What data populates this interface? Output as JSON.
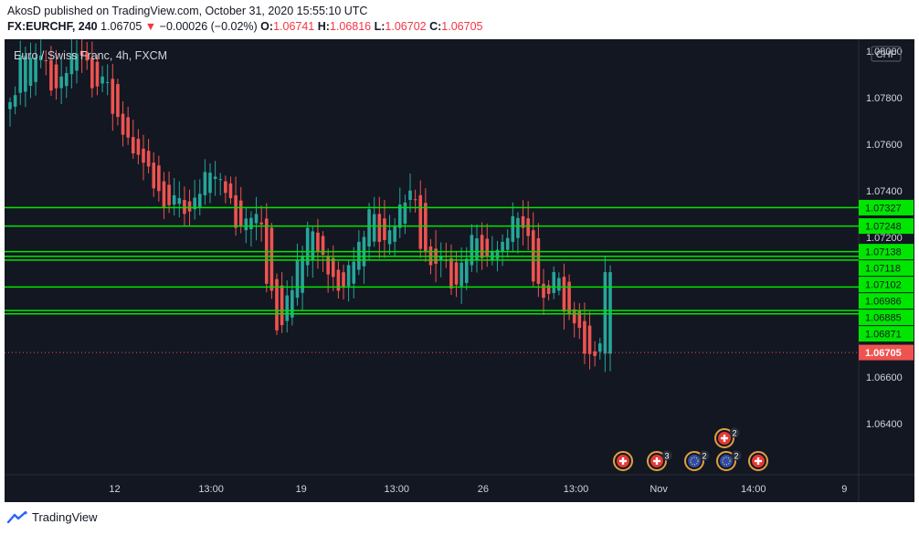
{
  "header": {
    "line1": "AkosD published on TradingView.com, October 31, 2020 15:55:10 UTC",
    "symbol": "FX:EURCHF, 240",
    "last": "1.06705",
    "arrow": "▼",
    "change": "−0.00026 (−0.02%)",
    "o_label": "O:",
    "o": "1.06741",
    "h_label": "H:",
    "h": "1.06816",
    "l_label": "L:",
    "l": "1.06702",
    "c_label": "C:",
    "c": "1.06705"
  },
  "legend": "Euro / Swiss Franc, 4h, FXCM",
  "currency_badge": "CHF",
  "footer": {
    "brand": "TradingView"
  },
  "colors": {
    "bg": "#131722",
    "up": "#26a69a",
    "down": "#ef5350",
    "level": "#00e600",
    "price_tag": "#ef5350",
    "axis_text": "#d1d4dc"
  },
  "chart_data": {
    "type": "candlestick",
    "y_axis": {
      "ylim": [
        1.0618,
        1.0805
      ],
      "ticks": [
        "1.08000",
        "1.07800",
        "1.07600",
        "1.07400",
        "1.07200",
        "1.06600",
        "1.06400"
      ]
    },
    "x_axis": {
      "ticks": [
        {
          "label": "12",
          "t": 0.121
        },
        {
          "label": "13:00",
          "t": 0.227
        },
        {
          "label": "19",
          "t": 0.326
        },
        {
          "label": "13:00",
          "t": 0.431
        },
        {
          "label": "26",
          "t": 0.526
        },
        {
          "label": "13:00",
          "t": 0.628
        },
        {
          "label": "Nov",
          "t": 0.719
        },
        {
          "label": "14:00",
          "t": 0.823
        },
        {
          "label": "9",
          "t": 0.923
        }
      ]
    },
    "levels": [
      {
        "value": 1.07327,
        "label": "1.07327",
        "tag": true
      },
      {
        "value": 1.07248,
        "label": "1.07248",
        "tag": true
      },
      {
        "value": 1.07138,
        "label": "1.07138",
        "tag": true
      },
      {
        "value": 1.07118,
        "label": "1.07118",
        "tag": true
      },
      {
        "value": 1.07102,
        "label": "1.07102",
        "tag": true
      },
      {
        "value": 1.06986,
        "label": "1.06986",
        "tag": true
      },
      {
        "value": 1.06885,
        "label": "1.06885",
        "tag": true
      },
      {
        "value": 1.06871,
        "label": "1.06871",
        "tag": true
      }
    ],
    "current_price": {
      "value": 1.06705,
      "label": "1.06705"
    },
    "events": [
      {
        "label": "",
        "count": "",
        "kind": "red"
      },
      {
        "label": "",
        "count": "3",
        "kind": "red"
      },
      {
        "label": "",
        "count": "2",
        "kind": "eu"
      },
      {
        "label": "",
        "count": "2",
        "kind": "red"
      },
      {
        "label": "",
        "count": "2",
        "kind": "eu"
      },
      {
        "label": "",
        "count": "",
        "kind": "red"
      }
    ],
    "anchors": [
      [
        1.0775,
        1.0778
      ],
      [
        1.0782,
        1.0798
      ],
      [
        1.0785,
        1.0797
      ],
      [
        1.0796,
        1.0798
      ],
      [
        1.0796,
        1.0783
      ],
      [
        1.0784,
        1.0789
      ],
      [
        1.079,
        1.0799
      ],
      [
        1.08,
        1.0798
      ],
      [
        1.0797,
        1.0784
      ],
      [
        1.0786,
        1.0789
      ],
      [
        1.0788,
        1.0773
      ],
      [
        1.0773,
        1.0764
      ],
      [
        1.0763,
        1.0756
      ],
      [
        1.0758,
        1.0752
      ],
      [
        1.0752,
        1.0741
      ],
      [
        1.0744,
        1.0733
      ],
      [
        1.0734,
        1.0738
      ],
      [
        1.0736,
        1.073
      ],
      [
        1.0732,
        1.0737
      ],
      [
        1.0738,
        1.0748
      ],
      [
        1.0745,
        1.0746
      ],
      [
        1.0744,
        1.0739
      ],
      [
        1.0738,
        1.0724
      ],
      [
        1.0723,
        1.0728
      ],
      [
        1.0726,
        1.073
      ],
      [
        1.0728,
        1.07
      ],
      [
        1.0702,
        1.068
      ],
      [
        1.0684,
        1.0695
      ],
      [
        1.0694,
        1.071
      ],
      [
        1.0708,
        1.0724
      ],
      [
        1.0722,
        1.0714
      ],
      [
        1.0712,
        1.0704
      ],
      [
        1.0706,
        1.0697
      ],
      [
        1.0699,
        1.0708
      ],
      [
        1.0706,
        1.0718
      ],
      [
        1.0716,
        1.0732
      ],
      [
        1.073,
        1.0718
      ],
      [
        1.0717,
        1.0723
      ],
      [
        1.0724,
        1.0734
      ],
      [
        1.0736,
        1.074
      ],
      [
        1.0738,
        1.0715
      ],
      [
        1.0716,
        1.0708
      ],
      [
        1.071,
        1.0712
      ],
      [
        1.0711,
        1.0698
      ],
      [
        1.0699,
        1.0709
      ],
      [
        1.0708,
        1.0721
      ],
      [
        1.0721,
        1.0711
      ],
      [
        1.071,
        1.0714
      ],
      [
        1.0714,
        1.0718
      ],
      [
        1.0718,
        1.0729
      ],
      [
        1.0729,
        1.0724
      ],
      [
        1.0723,
        1.0701
      ],
      [
        1.07,
        1.0694
      ],
      [
        1.0696,
        1.0705
      ],
      [
        1.0703,
        1.0688
      ],
      [
        1.0689,
        1.0683
      ],
      [
        1.0684,
        1.067
      ],
      [
        1.0671,
        1.0669
      ],
      [
        1.067,
        1.0705
      ]
    ]
  }
}
